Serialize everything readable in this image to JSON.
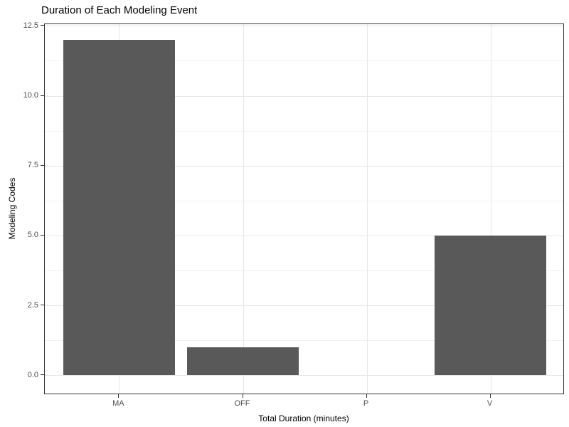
{
  "chart_data": {
    "type": "bar",
    "title": "Duration of Each Modeling Event",
    "xlabel": "Total Duration (minutes)",
    "ylabel": "Modeling Codes",
    "categories": [
      "MA",
      "OFF",
      "P",
      "V"
    ],
    "values": [
      12,
      1,
      0,
      5
    ],
    "y_tick_labels": [
      "0.0",
      "2.5",
      "5.0",
      "7.5",
      "10.0",
      "12.5"
    ],
    "y_tick_values": [
      0,
      2.5,
      5,
      7.5,
      10,
      12.5
    ],
    "y_minor_values": [
      1.25,
      3.75,
      6.25,
      8.75,
      11.25
    ],
    "ylim": [
      0,
      12.5
    ],
    "grid": true,
    "legend": "none",
    "colors": {
      "bar_fill": "#595959",
      "panel_border": "#333333",
      "grid_major": "#e7e7e7",
      "grid_minor": "#f1f1f1",
      "axis_text": "#4d4d4d",
      "title_text": "#000000",
      "background": "#ffffff"
    }
  }
}
